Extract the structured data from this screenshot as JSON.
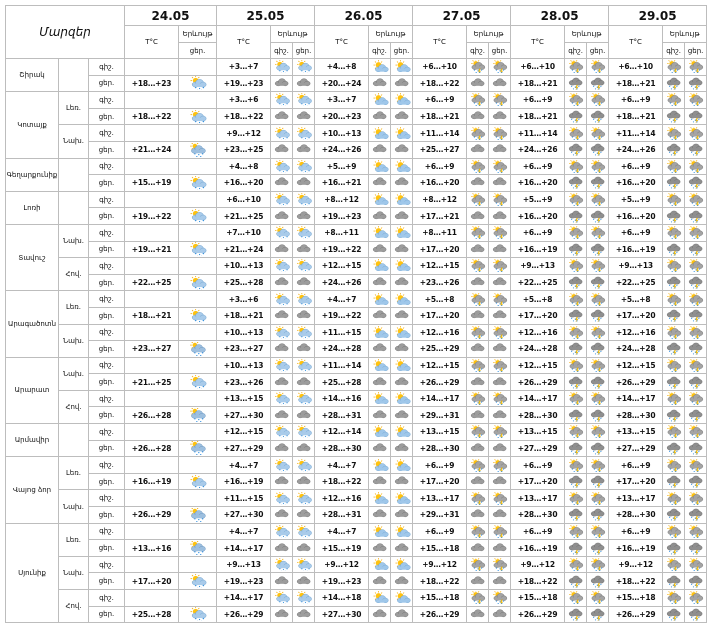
{
  "header": {
    "title": "Մարզեր",
    "temp_label": "T°C",
    "weather_label": "Երևույթ",
    "day_label": "ցեր.",
    "night_label": "գիշ.",
    "dates": [
      "24.05",
      "25.05",
      "26.05",
      "27.05",
      "28.05",
      "29.05"
    ]
  },
  "icons": {
    "sun_cloud": "sun-behind-cloud-icon",
    "cloud": "cloud-icon",
    "rain": "rain-cloud-icon",
    "storm": "thunderstorm-icon",
    "sun_rain": "sun-cloud-rain-icon",
    "sun_storm": "sun-cloud-thunder-icon"
  },
  "regions": [
    {
      "name": "Շիրակ",
      "subs": [
        {
          "label": "",
          "rows": [
            {
              "p": "գիշ.",
              "d": [
                "",
                "+3…+7",
                "+4…+8",
                "+6…+10",
                "+6…+10",
                "+6…+10"
              ],
              "w": [
                "",
                "sun_rain",
                "sun_cloud",
                "sun_storm",
                "sun_storm",
                "sun_storm"
              ]
            },
            {
              "p": "ցեր.",
              "d": [
                "+18…+23",
                "+19…+23",
                "+20…+24",
                "+18…+22",
                "+18…+21",
                "+18…+21"
              ],
              "w": [
                "sun_rain",
                "cloud",
                "cloud",
                "cloud",
                "storm",
                "storm"
              ]
            }
          ]
        }
      ]
    },
    {
      "name": "Կոտայք",
      "subs": [
        {
          "label": "Լեռ.",
          "rows": [
            {
              "p": "գիշ.",
              "d": [
                "",
                "+3…+6",
                "+3…+7",
                "+6…+9",
                "+6…+9",
                "+6…+9"
              ],
              "w": [
                "",
                "sun_rain",
                "sun_cloud",
                "sun_storm",
                "sun_storm",
                "sun_storm"
              ]
            },
            {
              "p": "ցեր.",
              "d": [
                "+18…+22",
                "+18…+22",
                "+20…+23",
                "+18…+21",
                "+18…+21",
                "+18…+21"
              ],
              "w": [
                "sun_rain",
                "cloud",
                "cloud",
                "cloud",
                "storm",
                "storm"
              ]
            }
          ]
        },
        {
          "label": "Նախ.",
          "rows": [
            {
              "p": "գիշ.",
              "d": [
                "",
                "+9…+12",
                "+10…+13",
                "+11…+14",
                "+11…+14",
                "+11…+14"
              ],
              "w": [
                "",
                "sun_rain",
                "sun_cloud",
                "sun_storm",
                "sun_storm",
                "sun_storm"
              ]
            },
            {
              "p": "ցեր.",
              "d": [
                "+21…+24",
                "+23…+25",
                "+24…+26",
                "+25…+27",
                "+24…+26",
                "+24…+26"
              ],
              "w": [
                "rain",
                "cloud",
                "cloud",
                "cloud",
                "storm",
                "storm"
              ]
            }
          ]
        }
      ]
    },
    {
      "name": "Գեղարքունիք",
      "subs": [
        {
          "label": "",
          "rows": [
            {
              "p": "գիշ.",
              "d": [
                "",
                "+4…+8",
                "+5…+9",
                "+6…+9",
                "+6…+9",
                "+6…+9"
              ],
              "w": [
                "",
                "sun_rain",
                "sun_cloud",
                "sun_storm",
                "sun_storm",
                "sun_storm"
              ]
            },
            {
              "p": "ցեր.",
              "d": [
                "+15…+19",
                "+16…+20",
                "+16…+21",
                "+16…+20",
                "+16…+20",
                "+16…+20"
              ],
              "w": [
                "sun_rain",
                "cloud",
                "cloud",
                "cloud",
                "storm",
                "storm"
              ]
            }
          ]
        }
      ]
    },
    {
      "name": "Լոռի",
      "subs": [
        {
          "label": "",
          "rows": [
            {
              "p": "գիշ.",
              "d": [
                "",
                "+6…+10",
                "+8…+12",
                "+8…+12",
                "+5…+9",
                "+5…+9"
              ],
              "w": [
                "",
                "sun_rain",
                "sun_cloud",
                "sun_storm",
                "sun_storm",
                "sun_storm"
              ]
            },
            {
              "p": "ցեր.",
              "d": [
                "+19…+22",
                "+21…+25",
                "+19…+23",
                "+17…+21",
                "+16…+20",
                "+16…+20"
              ],
              "w": [
                "sun_rain",
                "cloud",
                "cloud",
                "cloud",
                "storm",
                "storm"
              ]
            }
          ]
        }
      ]
    },
    {
      "name": "Տավուշ",
      "subs": [
        {
          "label": "Նախ.",
          "rows": [
            {
              "p": "գիշ.",
              "d": [
                "",
                "+7…+10",
                "+8…+11",
                "+8…+11",
                "+6…+9",
                "+6…+9"
              ],
              "w": [
                "",
                "sun_rain",
                "sun_cloud",
                "sun_storm",
                "sun_storm",
                "sun_storm"
              ]
            },
            {
              "p": "ցեր.",
              "d": [
                "+19…+21",
                "+21…+24",
                "+19…+22",
                "+17…+20",
                "+16…+19",
                "+16…+19"
              ],
              "w": [
                "sun_rain",
                "cloud",
                "cloud",
                "cloud",
                "storm",
                "storm"
              ]
            }
          ]
        },
        {
          "label": "Հով.",
          "rows": [
            {
              "p": "գիշ.",
              "d": [
                "",
                "+10…+13",
                "+12…+15",
                "+12…+15",
                "+9…+13",
                "+9…+13"
              ],
              "w": [
                "",
                "sun_rain",
                "sun_cloud",
                "sun_storm",
                "sun_storm",
                "sun_storm"
              ]
            },
            {
              "p": "ցեր.",
              "d": [
                "+22…+25",
                "+25…+28",
                "+24…+26",
                "+23…+26",
                "+22…+25",
                "+22…+25"
              ],
              "w": [
                "sun_rain",
                "cloud",
                "cloud",
                "cloud",
                "storm",
                "storm"
              ]
            }
          ]
        }
      ]
    },
    {
      "name": "Արագածոտն",
      "subs": [
        {
          "label": "Լեռ.",
          "rows": [
            {
              "p": "գիշ.",
              "d": [
                "",
                "+3…+6",
                "+4…+7",
                "+5…+8",
                "+5…+8",
                "+5…+8"
              ],
              "w": [
                "",
                "sun_rain",
                "sun_cloud",
                "sun_storm",
                "sun_storm",
                "sun_storm"
              ]
            },
            {
              "p": "ցեր.",
              "d": [
                "+18…+21",
                "+18…+21",
                "+19…+22",
                "+17…+20",
                "+17…+20",
                "+17…+20"
              ],
              "w": [
                "sun_rain",
                "cloud",
                "cloud",
                "cloud",
                "storm",
                "storm"
              ]
            }
          ]
        },
        {
          "label": "Նախ.",
          "rows": [
            {
              "p": "գիշ.",
              "d": [
                "",
                "+10…+13",
                "+11…+15",
                "+12…+16",
                "+12…+16",
                "+12…+16"
              ],
              "w": [
                "",
                "sun_rain",
                "sun_cloud",
                "sun_storm",
                "sun_storm",
                "sun_storm"
              ]
            },
            {
              "p": "ցեր.",
              "d": [
                "+23…+27",
                "+23…+27",
                "+24…+28",
                "+25…+29",
                "+24…+28",
                "+24…+28"
              ],
              "w": [
                "rain",
                "cloud",
                "cloud",
                "cloud",
                "storm",
                "storm"
              ]
            }
          ]
        }
      ]
    },
    {
      "name": "Արարատ",
      "subs": [
        {
          "label": "Նախ.",
          "rows": [
            {
              "p": "գիշ.",
              "d": [
                "",
                "+10…+13",
                "+11…+14",
                "+12…+15",
                "+12…+15",
                "+12…+15"
              ],
              "w": [
                "",
                "sun_rain",
                "sun_cloud",
                "sun_storm",
                "sun_storm",
                "sun_storm"
              ]
            },
            {
              "p": "ցեր.",
              "d": [
                "+21…+25",
                "+23…+26",
                "+25…+28",
                "+26…+29",
                "+26…+29",
                "+26…+29"
              ],
              "w": [
                "sun_rain",
                "cloud",
                "cloud",
                "cloud",
                "storm",
                "storm"
              ]
            }
          ]
        },
        {
          "label": "Հով.",
          "rows": [
            {
              "p": "գիշ.",
              "d": [
                "",
                "+13…+15",
                "+14…+16",
                "+14…+17",
                "+14…+17",
                "+14…+17"
              ],
              "w": [
                "",
                "sun_rain",
                "sun_cloud",
                "sun_storm",
                "sun_storm",
                "sun_storm"
              ]
            },
            {
              "p": "ցեր.",
              "d": [
                "+26…+28",
                "+27…+30",
                "+28…+31",
                "+29…+31",
                "+28…+30",
                "+28…+30"
              ],
              "w": [
                "rain",
                "cloud",
                "cloud",
                "cloud",
                "storm",
                "storm"
              ]
            }
          ]
        }
      ]
    },
    {
      "name": "Արմավիր",
      "subs": [
        {
          "label": "",
          "rows": [
            {
              "p": "գիշ.",
              "d": [
                "",
                "+12…+15",
                "+12…+14",
                "+13…+15",
                "+13…+15",
                "+13…+15"
              ],
              "w": [
                "",
                "sun_rain",
                "sun_cloud",
                "sun_storm",
                "sun_storm",
                "sun_storm"
              ]
            },
            {
              "p": "ցեր.",
              "d": [
                "+26…+28",
                "+27…+29",
                "+28…+30",
                "+28…+30",
                "+27…+29",
                "+27…+29"
              ],
              "w": [
                "rain",
                "cloud",
                "cloud",
                "cloud",
                "storm",
                "storm"
              ]
            }
          ]
        }
      ]
    },
    {
      "name": "Վայոց ձոր",
      "subs": [
        {
          "label": "Լեռ.",
          "rows": [
            {
              "p": "գիշ.",
              "d": [
                "",
                "+4…+7",
                "+4…+7",
                "+6…+9",
                "+6…+9",
                "+6…+9"
              ],
              "w": [
                "",
                "sun_rain",
                "sun_cloud",
                "sun_storm",
                "sun_storm",
                "sun_storm"
              ]
            },
            {
              "p": "ցեր.",
              "d": [
                "+16…+19",
                "+16…+19",
                "+18…+22",
                "+17…+20",
                "+17…+20",
                "+17…+20"
              ],
              "w": [
                "sun_rain",
                "cloud",
                "cloud",
                "cloud",
                "storm",
                "storm"
              ]
            }
          ]
        },
        {
          "label": "Նախ.",
          "rows": [
            {
              "p": "գիշ.",
              "d": [
                "",
                "+11…+15",
                "+12…+16",
                "+13…+17",
                "+13…+17",
                "+13…+17"
              ],
              "w": [
                "",
                "sun_rain",
                "sun_cloud",
                "sun_storm",
                "sun_storm",
                "sun_storm"
              ]
            },
            {
              "p": "ցեր.",
              "d": [
                "+26…+29",
                "+27…+30",
                "+28…+31",
                "+29…+31",
                "+28…+30",
                "+28…+30"
              ],
              "w": [
                "rain",
                "cloud",
                "cloud",
                "cloud",
                "storm",
                "storm"
              ]
            }
          ]
        }
      ]
    },
    {
      "name": "Սյունիք",
      "subs": [
        {
          "label": "Լեռ.",
          "rows": [
            {
              "p": "գիշ.",
              "d": [
                "",
                "+4…+7",
                "+4…+7",
                "+6…+9",
                "+6…+9",
                "+6…+9"
              ],
              "w": [
                "",
                "sun_rain",
                "sun_cloud",
                "sun_storm",
                "sun_storm",
                "sun_storm"
              ]
            },
            {
              "p": "ցեր.",
              "d": [
                "+13…+16",
                "+14…+17",
                "+15…+19",
                "+15…+18",
                "+16…+19",
                "+16…+19"
              ],
              "w": [
                "rain",
                "cloud",
                "cloud",
                "cloud",
                "storm",
                "storm"
              ]
            }
          ]
        },
        {
          "label": "Նախ.",
          "rows": [
            {
              "p": "գիշ.",
              "d": [
                "",
                "+9…+13",
                "+9…+12",
                "+9…+12",
                "+9…+12",
                "+9…+12"
              ],
              "w": [
                "",
                "sun_rain",
                "sun_cloud",
                "sun_storm",
                "sun_storm",
                "sun_storm"
              ]
            },
            {
              "p": "ցեր.",
              "d": [
                "+17…+20",
                "+19…+23",
                "+19…+23",
                "+18…+22",
                "+18…+22",
                "+18…+22"
              ],
              "w": [
                "sun_rain",
                "cloud",
                "cloud",
                "cloud",
                "storm",
                "storm"
              ]
            }
          ]
        },
        {
          "label": "Հով.",
          "rows": [
            {
              "p": "գիշ.",
              "d": [
                "",
                "+14…+17",
                "+14…+18",
                "+15…+18",
                "+15…+18",
                "+15…+18"
              ],
              "w": [
                "",
                "sun_rain",
                "sun_cloud",
                "sun_storm",
                "sun_storm",
                "sun_storm"
              ]
            },
            {
              "p": "ցեր.",
              "d": [
                "+25…+28",
                "+26…+29",
                "+27…+30",
                "+26…+29",
                "+26…+29",
                "+26…+29"
              ],
              "w": [
                "sun_rain",
                "cloud",
                "cloud",
                "cloud",
                "storm",
                "storm"
              ]
            }
          ]
        }
      ]
    }
  ]
}
